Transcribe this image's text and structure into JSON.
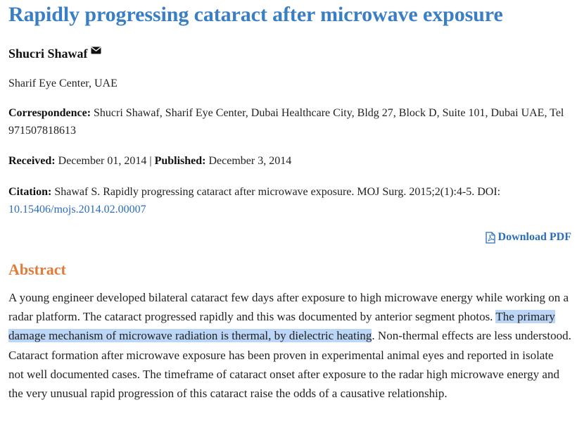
{
  "article": {
    "title": "Rapidly progressing cataract after microwave exposure",
    "author": "Shucri Shawaf",
    "affiliation": "Sharif Eye Center, UAE",
    "correspondence_label": "Correspondence:",
    "correspondence_text": "Shucri Shawaf, Sharif Eye Center, Dubai Healthcare City, Bldg 27, Block D, Suite 101, Dubai UAE, Tel 971507818613",
    "received_label": "Received:",
    "received_date": "December 01, 2014",
    "separator": "|",
    "published_label": "Published:",
    "published_date": "December 3, 2014",
    "citation_label": "Citation:",
    "citation_text": "Shawaf S. Rapidly progressing cataract after microwave exposure. MOJ Surg. 2015;2(1):4-5. DOI:",
    "doi": "10.15406/mojs.2014.02.00007",
    "download_label": "Download PDF"
  },
  "abstract": {
    "heading": "Abstract",
    "text_before": "A young engineer developed bilateral cataract few days after exposure to high microwave energy while working on a radar platform. The cataract progressed rapidly and this was documented by anterior segment photos. ",
    "text_highlighted": "The primary damage mechanism of microwave radiation is thermal, by dielectric heating",
    "text_after": ". Non-thermal effects are less understood. Cataract formation after microwave exposure has been proven in experimental animal eyes and reported in isolate not well documented cases. The timeframe of cataract onset after exposure to the radar high microwave energy and the very unusual rapid progression of this cataract raise the odds of a causative relationship."
  },
  "icons": {
    "email": "envelope-icon",
    "download": "pdf-file-icon"
  },
  "colors": {
    "title": "#3a7fc4",
    "link": "#2a6db8",
    "abstract_heading": "#e07b3a",
    "selection_highlight": "#bcd6f7"
  }
}
